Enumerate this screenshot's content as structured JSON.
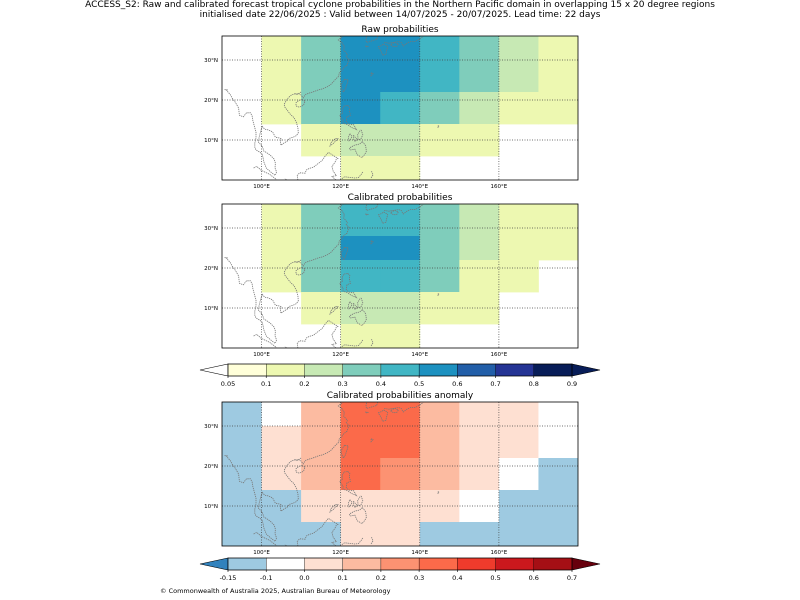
{
  "header": {
    "line1": "ACCESS_S2: Raw and calibrated forecast tropical cyclone probabilities in the Northern Pacific domain in overlapping 15 x 20 degree regions",
    "line2": "initialised date 22/06/2025 :  Valid between 14/07/2025 - 20/07/2025. Lead time: 22 days"
  },
  "footer": {
    "copyright": "© Commonwealth of Australia 2025, Australian Bureau of Meteorology"
  },
  "map_axes": {
    "lon_range": [
      90,
      180
    ],
    "lat_range": [
      0,
      36
    ],
    "lon_ticks": [
      "100°E",
      "120°E",
      "140°E",
      "160°E"
    ],
    "lat_ticks": [
      "10°N",
      "20°N",
      "30°N"
    ],
    "grid": "dotted"
  },
  "panels": [
    {
      "title": "Raw probabilities",
      "scale": "prob",
      "cells": [
        {
          "lon": [
            100,
            110
          ],
          "lat": [
            28,
            36
          ],
          "v": 0.12
        },
        {
          "lon": [
            110,
            120
          ],
          "lat": [
            28,
            36
          ],
          "v": 0.33
        },
        {
          "lon": [
            120,
            140
          ],
          "lat": [
            28,
            36
          ],
          "v": 0.55
        },
        {
          "lon": [
            140,
            150
          ],
          "lat": [
            28,
            36
          ],
          "v": 0.45
        },
        {
          "lon": [
            150,
            160
          ],
          "lat": [
            28,
            36
          ],
          "v": 0.33
        },
        {
          "lon": [
            160,
            170
          ],
          "lat": [
            28,
            36
          ],
          "v": 0.25
        },
        {
          "lon": [
            170,
            180
          ],
          "lat": [
            28,
            36
          ],
          "v": 0.18
        },
        {
          "lon": [
            100,
            110
          ],
          "lat": [
            22,
            28
          ],
          "v": 0.18
        },
        {
          "lon": [
            110,
            120
          ],
          "lat": [
            22,
            28
          ],
          "v": 0.33
        },
        {
          "lon": [
            120,
            140
          ],
          "lat": [
            22,
            28
          ],
          "v": 0.55
        },
        {
          "lon": [
            140,
            150
          ],
          "lat": [
            22,
            28
          ],
          "v": 0.45
        },
        {
          "lon": [
            150,
            160
          ],
          "lat": [
            22,
            28
          ],
          "v": 0.33
        },
        {
          "lon": [
            160,
            170
          ],
          "lat": [
            22,
            28
          ],
          "v": 0.25
        },
        {
          "lon": [
            170,
            180
          ],
          "lat": [
            22,
            28
          ],
          "v": 0.18
        },
        {
          "lon": [
            100,
            110
          ],
          "lat": [
            14,
            22
          ],
          "v": 0.18
        },
        {
          "lon": [
            110,
            120
          ],
          "lat": [
            14,
            22
          ],
          "v": 0.33
        },
        {
          "lon": [
            120,
            130
          ],
          "lat": [
            14,
            22
          ],
          "v": 0.55
        },
        {
          "lon": [
            130,
            140
          ],
          "lat": [
            14,
            22
          ],
          "v": 0.45
        },
        {
          "lon": [
            140,
            150
          ],
          "lat": [
            14,
            22
          ],
          "v": 0.33
        },
        {
          "lon": [
            150,
            160
          ],
          "lat": [
            14,
            22
          ],
          "v": 0.25
        },
        {
          "lon": [
            160,
            170
          ],
          "lat": [
            14,
            22
          ],
          "v": 0.18
        },
        {
          "lon": [
            170,
            180
          ],
          "lat": [
            14,
            22
          ],
          "v": 0.12
        },
        {
          "lon": [
            110,
            120
          ],
          "lat": [
            6,
            14
          ],
          "v": 0.18
        },
        {
          "lon": [
            120,
            130
          ],
          "lat": [
            6,
            14
          ],
          "v": 0.25
        },
        {
          "lon": [
            130,
            140
          ],
          "lat": [
            6,
            14
          ],
          "v": 0.25
        },
        {
          "lon": [
            140,
            150
          ],
          "lat": [
            6,
            14
          ],
          "v": 0.18
        },
        {
          "lon": [
            150,
            160
          ],
          "lat": [
            6,
            14
          ],
          "v": 0.12
        },
        {
          "lon": [
            120,
            140
          ],
          "lat": [
            0,
            6
          ],
          "v": 0.12
        }
      ]
    },
    {
      "title": "Calibrated probabilities",
      "scale": "prob",
      "cells": [
        {
          "lon": [
            100,
            110
          ],
          "lat": [
            28,
            36
          ],
          "v": 0.12
        },
        {
          "lon": [
            110,
            120
          ],
          "lat": [
            28,
            36
          ],
          "v": 0.33
        },
        {
          "lon": [
            120,
            130
          ],
          "lat": [
            28,
            36
          ],
          "v": 0.45
        },
        {
          "lon": [
            130,
            140
          ],
          "lat": [
            28,
            36
          ],
          "v": 0.45
        },
        {
          "lon": [
            140,
            150
          ],
          "lat": [
            28,
            36
          ],
          "v": 0.33
        },
        {
          "lon": [
            150,
            160
          ],
          "lat": [
            28,
            36
          ],
          "v": 0.25
        },
        {
          "lon": [
            160,
            170
          ],
          "lat": [
            28,
            36
          ],
          "v": 0.18
        },
        {
          "lon": [
            170,
            180
          ],
          "lat": [
            28,
            36
          ],
          "v": 0.12
        },
        {
          "lon": [
            100,
            110
          ],
          "lat": [
            22,
            28
          ],
          "v": 0.18
        },
        {
          "lon": [
            110,
            120
          ],
          "lat": [
            22,
            28
          ],
          "v": 0.33
        },
        {
          "lon": [
            120,
            140
          ],
          "lat": [
            22,
            28
          ],
          "v": 0.55
        },
        {
          "lon": [
            140,
            150
          ],
          "lat": [
            22,
            28
          ],
          "v": 0.33
        },
        {
          "lon": [
            150,
            160
          ],
          "lat": [
            22,
            28
          ],
          "v": 0.25
        },
        {
          "lon": [
            160,
            170
          ],
          "lat": [
            22,
            28
          ],
          "v": 0.18
        },
        {
          "lon": [
            170,
            180
          ],
          "lat": [
            22,
            28
          ],
          "v": 0.12
        },
        {
          "lon": [
            100,
            110
          ],
          "lat": [
            14,
            22
          ],
          "v": 0.18
        },
        {
          "lon": [
            110,
            120
          ],
          "lat": [
            14,
            22
          ],
          "v": 0.33
        },
        {
          "lon": [
            120,
            130
          ],
          "lat": [
            14,
            22
          ],
          "v": 0.45
        },
        {
          "lon": [
            130,
            140
          ],
          "lat": [
            14,
            22
          ],
          "v": 0.45
        },
        {
          "lon": [
            140,
            150
          ],
          "lat": [
            14,
            22
          ],
          "v": 0.33
        },
        {
          "lon": [
            150,
            160
          ],
          "lat": [
            14,
            22
          ],
          "v": 0.18
        },
        {
          "lon": [
            160,
            170
          ],
          "lat": [
            14,
            22
          ],
          "v": 0.12
        },
        {
          "lon": [
            110,
            120
          ],
          "lat": [
            6,
            14
          ],
          "v": 0.18
        },
        {
          "lon": [
            120,
            130
          ],
          "lat": [
            6,
            14
          ],
          "v": 0.25
        },
        {
          "lon": [
            130,
            140
          ],
          "lat": [
            6,
            14
          ],
          "v": 0.25
        },
        {
          "lon": [
            140,
            150
          ],
          "lat": [
            6,
            14
          ],
          "v": 0.18
        },
        {
          "lon": [
            150,
            160
          ],
          "lat": [
            6,
            14
          ],
          "v": 0.12
        },
        {
          "lon": [
            120,
            140
          ],
          "lat": [
            0,
            6
          ],
          "v": 0.12
        }
      ]
    },
    {
      "title": "Calibrated probabilities anomaly",
      "scale": "anom",
      "cells": [
        {
          "lon": [
            90,
            100
          ],
          "lat": [
            0,
            36
          ],
          "v": -0.13
        },
        {
          "lon": [
            100,
            110
          ],
          "lat": [
            30,
            36
          ],
          "v": -0.08
        },
        {
          "lon": [
            100,
            110
          ],
          "lat": [
            14,
            30
          ],
          "v": 0.0
        },
        {
          "lon": [
            100,
            110
          ],
          "lat": [
            0,
            14
          ],
          "v": -0.13
        },
        {
          "lon": [
            110,
            120
          ],
          "lat": [
            14,
            36
          ],
          "v": 0.15
        },
        {
          "lon": [
            110,
            120
          ],
          "lat": [
            6,
            14
          ],
          "v": 0.0
        },
        {
          "lon": [
            110,
            120
          ],
          "lat": [
            0,
            6
          ],
          "v": -0.13
        },
        {
          "lon": [
            120,
            130
          ],
          "lat": [
            14,
            36
          ],
          "v": 0.35
        },
        {
          "lon": [
            130,
            140
          ],
          "lat": [
            22,
            36
          ],
          "v": 0.35
        },
        {
          "lon": [
            130,
            140
          ],
          "lat": [
            14,
            22
          ],
          "v": 0.25
        },
        {
          "lon": [
            120,
            140
          ],
          "lat": [
            6,
            14
          ],
          "v": 0.05
        },
        {
          "lon": [
            120,
            140
          ],
          "lat": [
            0,
            6
          ],
          "v": 0.0
        },
        {
          "lon": [
            140,
            150
          ],
          "lat": [
            14,
            36
          ],
          "v": 0.15
        },
        {
          "lon": [
            140,
            150
          ],
          "lat": [
            6,
            14
          ],
          "v": 0.0
        },
        {
          "lon": [
            140,
            150
          ],
          "lat": [
            0,
            6
          ],
          "v": -0.13
        },
        {
          "lon": [
            150,
            160
          ],
          "lat": [
            22,
            36
          ],
          "v": 0.05
        },
        {
          "lon": [
            150,
            160
          ],
          "lat": [
            14,
            22
          ],
          "v": 0.0
        },
        {
          "lon": [
            150,
            160
          ],
          "lat": [
            6,
            14
          ],
          "v": -0.08
        },
        {
          "lon": [
            150,
            160
          ],
          "lat": [
            0,
            6
          ],
          "v": -0.13
        },
        {
          "lon": [
            160,
            170
          ],
          "lat": [
            22,
            36
          ],
          "v": 0.0
        },
        {
          "lon": [
            160,
            170
          ],
          "lat": [
            14,
            22
          ],
          "v": -0.08
        },
        {
          "lon": [
            160,
            170
          ],
          "lat": [
            0,
            14
          ],
          "v": -0.13
        },
        {
          "lon": [
            170,
            180
          ],
          "lat": [
            22,
            36
          ],
          "v": -0.08
        },
        {
          "lon": [
            170,
            180
          ],
          "lat": [
            0,
            22
          ],
          "v": -0.13
        }
      ]
    }
  ],
  "colorbars": {
    "prob": {
      "labels": [
        "0.05",
        "0.1",
        "0.2",
        "0.3",
        "0.4",
        "0.5",
        "0.6",
        "0.7",
        "0.8",
        "0.9"
      ],
      "bounds": [
        0.05,
        0.1,
        0.2,
        0.3,
        0.4,
        0.5,
        0.6,
        0.7,
        0.8,
        0.9
      ],
      "under": "#ffffff",
      "over": "#081d58",
      "colors": [
        "#ffffd9",
        "#edf8b1",
        "#c7e9b4",
        "#7fcdbb",
        "#41b6c4",
        "#1d91c0",
        "#225ea8",
        "#253494",
        "#081d58"
      ]
    },
    "anom": {
      "labels": [
        "-0.15",
        "-0.1",
        "0.0",
        "0.1",
        "0.2",
        "0.3",
        "0.4",
        "0.5",
        "0.6",
        "0.7"
      ],
      "bounds": [
        -0.15,
        -0.1,
        0.0,
        0.1,
        0.2,
        0.3,
        0.4,
        0.5,
        0.6,
        0.7
      ],
      "under": "#3182bd",
      "over": "#67000d",
      "colors": [
        "#9ecae1",
        "#ffffff",
        "#fee0d2",
        "#fcbba1",
        "#fc9272",
        "#fb6a4a",
        "#ef3b2c",
        "#cb181d",
        "#a50f15"
      ]
    }
  }
}
